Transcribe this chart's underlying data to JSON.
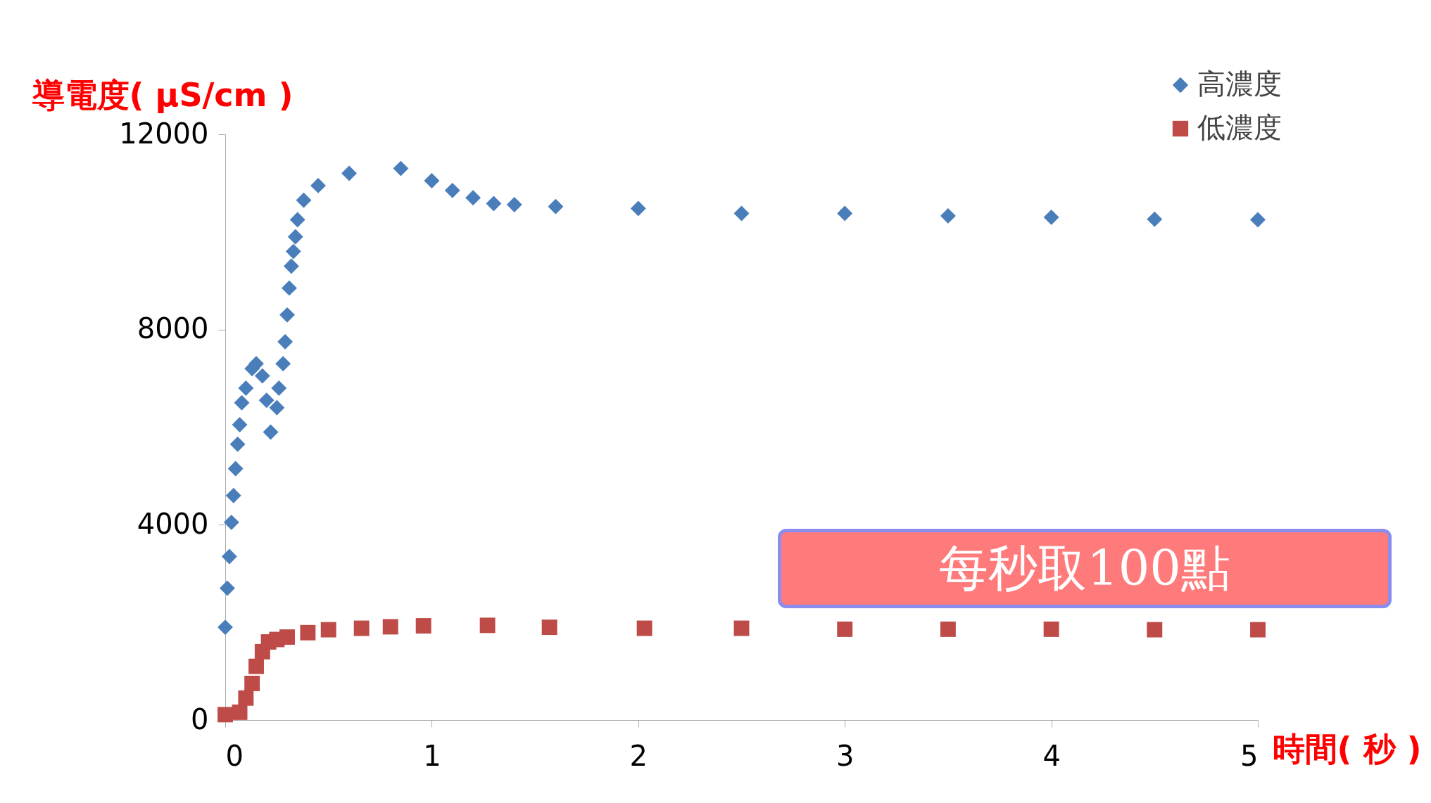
{
  "chart_data": {
    "type": "scatter",
    "ylabel": "導電度( μS/cm )",
    "xlabel": "時間( 秒 )",
    "xlim": [
      0,
      5
    ],
    "xticks": [
      0,
      1,
      2,
      3,
      4,
      5
    ],
    "ylim": [
      0,
      12000
    ],
    "yticks": [
      0,
      4000,
      8000,
      12000
    ],
    "grid": false,
    "legend": "top right",
    "annotations": [
      "每秒取100點"
    ],
    "series": [
      {
        "name": "高濃度",
        "color": "#4a7ebb",
        "marker": "diamond",
        "x": [
          0,
          0.01,
          0.02,
          0.03,
          0.04,
          0.05,
          0.06,
          0.07,
          0.08,
          0.1,
          0.13,
          0.15,
          0.18,
          0.2,
          0.22,
          0.25,
          0.26,
          0.28,
          0.29,
          0.3,
          0.31,
          0.32,
          0.33,
          0.34,
          0.35,
          0.38,
          0.45,
          0.6,
          0.85,
          1.0,
          1.1,
          1.2,
          1.3,
          1.4,
          1.6,
          2.0,
          2.5,
          3.0,
          3.5,
          4.0,
          4.5,
          5.0
        ],
        "values": [
          1900,
          2700,
          3350,
          4050,
          4600,
          5150,
          5650,
          6050,
          6500,
          6800,
          7200,
          7300,
          7050,
          6550,
          5900,
          6400,
          6800,
          7300,
          7750,
          8300,
          8850,
          9300,
          9600,
          9900,
          10250,
          10650,
          10950,
          11200,
          11300,
          11050,
          10850,
          10700,
          10580,
          10560,
          10520,
          10480,
          10380,
          10380,
          10330,
          10300,
          10260,
          10250
        ]
      },
      {
        "name": "低濃度",
        "color": "#be4b48",
        "marker": "square",
        "x": [
          0,
          0.07,
          0.1,
          0.13,
          0.15,
          0.18,
          0.21,
          0.25,
          0.3,
          0.4,
          0.5,
          0.66,
          0.8,
          0.96,
          1.27,
          1.57,
          2.03,
          2.5,
          3.0,
          3.5,
          4.0,
          4.5,
          5.0
        ],
        "values": [
          110,
          160,
          450,
          750,
          1100,
          1400,
          1600,
          1650,
          1700,
          1790,
          1850,
          1880,
          1910,
          1930,
          1940,
          1900,
          1880,
          1880,
          1860,
          1860,
          1860,
          1850,
          1850
        ]
      }
    ]
  }
}
